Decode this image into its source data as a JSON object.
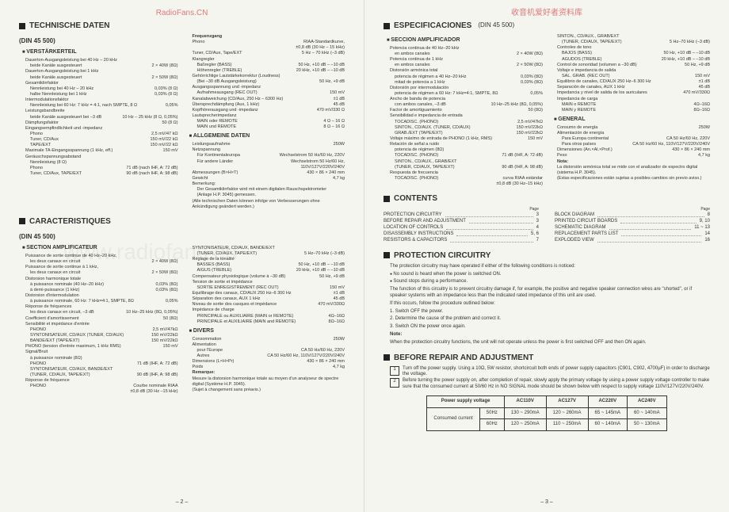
{
  "watermarks": {
    "top_left": "RadioFans.CN",
    "top_right": "收音机爱好者资料库",
    "bg": "www.radiofans.cn"
  },
  "left_page": {
    "page_num": "– 2 –",
    "h1": "TECHNISCHE DATEN",
    "din": "(DIN 45 500)",
    "sub_verst": "VERSTÄRKERTEIL",
    "de": [
      {
        "l": "Dauerton-Ausgangsleistung bei 40 Hz – 20 kHz",
        "v": ""
      },
      {
        "l": "beide Kanäle ausgesteuert",
        "v": "2 × 40W (8Ω)",
        "i": true
      },
      {
        "l": "Dauerton-Ausgangsleistung bei 1 kHz",
        "v": ""
      },
      {
        "l": "beide Kanäle ausgesteuert",
        "v": "2 × 50W (8Ω)",
        "i": true
      },
      {
        "l": "Gesamtklirrfaktor",
        "v": ""
      },
      {
        "l": "Nennleistung bei 40 Hz – 20 kHz",
        "v": "0,03% (8 Ω)",
        "i": true
      },
      {
        "l": "halbe Nennleistung bei 1 kHz",
        "v": "0,03% (8 Ω)",
        "i": true
      },
      {
        "l": "Intermodulationsfaktor",
        "v": ""
      },
      {
        "l": "Nennleistung bei 60 Hz: 7 kHz = 4:1, nach SMPTE, 8 Ω",
        "v": "0,05%",
        "i": true
      },
      {
        "l": "Leistungsbandbreite",
        "v": ""
      },
      {
        "l": "beide Kanäle ausgesteuert bei –3 dB",
        "v": "10 Hz – 25 kHz (8 Ω, 0,05%)",
        "i": true
      },
      {
        "l": "Dämpfungsfaktor",
        "v": "50 (8 Ω)"
      },
      {
        "l": "Eingangsempfindlichkeit und -impedanz",
        "v": ""
      },
      {
        "l": "Phono",
        "v": "2,5 mV/47 kΩ",
        "i": true
      },
      {
        "l": "Tuner, CD/Aux",
        "v": "150 mV/22 kΩ",
        "i": true
      },
      {
        "l": "TAPE/EXT",
        "v": "150 mV/22 kΩ",
        "i": true
      },
      {
        "l": "Maximale TA-Eingangsspannung (1 kHz, eff.)",
        "v": "150 mV"
      },
      {
        "l": "Geräuschspannungsabstand",
        "v": ""
      },
      {
        "l": "Nennleistung (8 Ω)",
        "v": "",
        "i": true
      },
      {
        "l": "Phono",
        "v": "71 dB (nach IHF, A: 72 dB)",
        "i": true
      },
      {
        "l": "Tuner, CD/Aux, TAPE/EXT",
        "v": "90 dB (nach IHF, A: 98 dB)",
        "i": true
      }
    ],
    "de_right_head": "Frequenzgang",
    "de_right": [
      {
        "l": "Phono",
        "v": "RIAA-Standardkurve,"
      },
      {
        "l": "",
        "v": "±0,8 dB (30 Hz – 15 kHz)"
      },
      {
        "l": "Tuner, CD/Aux, Tape/EXT",
        "v": "5 Hz – 70 kHz (–3 dB)"
      },
      {
        "l": "Klangregler",
        "v": ""
      },
      {
        "l": "Baßregler (BASS)",
        "v": "50 Hz, +10 dB – –10 dB",
        "i": true
      },
      {
        "l": "Höhenregler (TREBLE)",
        "v": "20 kHz, +10 dB – –10 dB",
        "i": true
      },
      {
        "l": "Gehörrichtige Lautstärkekorrektur (Loudness)",
        "v": ""
      },
      {
        "l": "(Bei –30 dB Ausgangsleistung)",
        "v": "50 Hz, +9 dB",
        "i": true
      },
      {
        "l": "Ausgangsspannung und -impedanz",
        "v": ""
      },
      {
        "l": "Aufnahmeausgang (REC OUT)",
        "v": "150 mV",
        "i": true
      },
      {
        "l": "Kanalabweichung (CD/Aux, 250 Hz – 6300 Hz)",
        "v": "±1 dB"
      },
      {
        "l": "Übersprechdämpfung (Aux, 1 kHz)",
        "v": "45 dB"
      },
      {
        "l": "Kopfhörerausgang und -impedanz",
        "v": "470 mV/330 Ω"
      },
      {
        "l": "Lautsprecherimpedanz",
        "v": ""
      },
      {
        "l": "MAIN oder REMOTE",
        "v": "4 Ω – 16 Ω",
        "i": true
      },
      {
        "l": "MAIN und REMOTE",
        "v": "8 Ω – 16 Ω",
        "i": true
      }
    ],
    "sub_allg": "ALLGEMEINE DATEN",
    "allg": [
      {
        "l": "Leistungsaufnahme",
        "v": "250W"
      },
      {
        "l": "Netzspannung",
        "v": ""
      },
      {
        "l": "Für Kontinentaleuropa",
        "v": "Wechselstrom 50 Hz/60 Hz, 220V",
        "i": true
      },
      {
        "l": "Für andere Länder",
        "v": "Wechselstrom 50 Hz/60 Hz,",
        "i": true
      },
      {
        "l": "",
        "v": "110V/127V/220V/240V",
        "i": true
      },
      {
        "l": "Abmessungen (B×H×T)",
        "v": "430 × 86 × 240 mm"
      },
      {
        "l": "Gewicht",
        "v": "4,7 kg"
      },
      {
        "l": "Bemerkung:",
        "v": ""
      },
      {
        "l": "Der Gesamtklirrfaktor wird mit einem digitalen Rauschspektrometer (Anlage H.P. 3045) gemessen.",
        "v": "",
        "i": true
      }
    ],
    "de_footer": "(Alle technischen Daten können infolge von Verbesserungen ohne Ankündigung geändert werden.)",
    "h2": "CARACTERISTIQUES",
    "din2": "(DIN 45 500)",
    "sub_ampl": "SECTION AMPLIFICATEUR",
    "fr": [
      {
        "l": "Puissance de sortie continue de 40 Hz–20 kHz,",
        "v": ""
      },
      {
        "l": "les deux canaux en circuit",
        "v": "2 × 40W (8Ω)",
        "i": true
      },
      {
        "l": "Puissance de sortie continue à 1 kHz,",
        "v": ""
      },
      {
        "l": "les deux canaux en circuit",
        "v": "2 × 50W (8Ω)",
        "i": true
      },
      {
        "l": "Distorsion harmonique totale",
        "v": ""
      },
      {
        "l": "à puissance nominale (40 Hz–20 kHz)",
        "v": "0,03% (8Ω)",
        "i": true
      },
      {
        "l": "à demi-puissance (1 kHz)",
        "v": "0,03% (8Ω)",
        "i": true
      },
      {
        "l": "Distorsion d'intermodulation",
        "v": ""
      },
      {
        "l": "à puissance nominale, 60 Hz: 7 kHz=4:1, SMPTE, 8Ω",
        "v": "0,05%",
        "i": true
      },
      {
        "l": "Réponse de fréquences",
        "v": ""
      },
      {
        "l": "les deux canaux en circuit, –3 dB",
        "v": "10 Hz–25 kHz (8Ω, 0,05%)",
        "i": true
      },
      {
        "l": "Coefficient d'amortissement",
        "v": "50 (8Ω)"
      },
      {
        "l": "Sensibilité et impédance d'entrée",
        "v": ""
      },
      {
        "l": "PHONO",
        "v": "2,5 mV/47kΩ",
        "i": true
      },
      {
        "l": "SYNTONISATEUR, CD/AUX (TUNER, CD/AUX)",
        "v": "150 mV/22kΩ",
        "i": true
      },
      {
        "l": "BANDE/EXT (TAPE/EXT)",
        "v": "150 mV/22kΩ",
        "i": true
      },
      {
        "l": "PHONO (tension d'entrée maximum, 1 kHz RMS)",
        "v": "150 mV"
      },
      {
        "l": "Signal/Bruit",
        "v": ""
      },
      {
        "l": "à puissance nominale (8Ω)",
        "v": "",
        "i": true
      },
      {
        "l": "PHONO",
        "v": "71 dB (IHF, A: 72 dB)",
        "i": true
      },
      {
        "l": "SYNTONISATEUR, CD/AUX, BANDE/EXT",
        "v": "",
        "i": true
      },
      {
        "l": "(TUNER, CD/AUX, TAPE/EXT)",
        "v": "90 dB (IHF, A: 98 dB)",
        "i": true
      },
      {
        "l": "Réponse de fréquence",
        "v": ""
      },
      {
        "l": "PHONO",
        "v": "Courbe nominale RIAA",
        "i": true
      },
      {
        "l": "",
        "v": "±0,8 dB (30 Hz –15 kHz)",
        "i": true
      }
    ],
    "fr_right": [
      {
        "l": "SYNTONISATEUR, CD/AUX, BANDE/EXT",
        "v": ""
      },
      {
        "l": "(TUNER, CD/AUX, TAPE/EXT)",
        "v": "5 Hz–70 kHz (–3 dB)",
        "i": true
      },
      {
        "l": "Réglage de la tonalité",
        "v": ""
      },
      {
        "l": "BASSES (BASS)",
        "v": "50 Hz, +10 dB – –10 dB",
        "i": true
      },
      {
        "l": "AIGUS (TREBLE)",
        "v": "20 kHz, +10 dB – –10 dB",
        "i": true
      },
      {
        "l": "Compensateur physiologique (volume à –30 dB)",
        "v": "50 Hz, +9 dB"
      },
      {
        "l": "Tension de sortie et impédance",
        "v": ""
      },
      {
        "l": "SORTIE ENREGISTREMENT (REC OUT)",
        "v": "150 mV",
        "i": true
      },
      {
        "l": "Equilibrage des canaux, CD/AUX 250 Hz–6 300 Hz",
        "v": "±1 dB"
      },
      {
        "l": "Séparation des canaux, AUX 1 kHz",
        "v": "45 dB"
      },
      {
        "l": "Niveau de sortie des casques et impédance",
        "v": "470 mV/330Ω"
      },
      {
        "l": "Impédance de charge",
        "v": ""
      },
      {
        "l": "PRINCIPALE ou AUXILIAIRE (MAIN or REMOTE)",
        "v": "4Ω–16Ω",
        "i": true
      },
      {
        "l": "PRINCIPALE et AUXILIAIRE (MAIN and REMOTE)",
        "v": "8Ω–16Ω",
        "i": true
      }
    ],
    "sub_divers": "DIVERS",
    "divers": [
      {
        "l": "Consommation",
        "v": "250W"
      },
      {
        "l": "Alimentation",
        "v": ""
      },
      {
        "l": "pour l'Europe",
        "v": "CA 50 Hz/60 Hz, 220V",
        "i": true
      },
      {
        "l": "Autres",
        "v": "CA 50 Hz/60 Hz, 110V/127V/220V/240V",
        "i": true
      },
      {
        "l": "Dimensions (L×H×Pr)",
        "v": "430 × 86 × 240 mm"
      },
      {
        "l": "Poids",
        "v": "4,7 kg"
      }
    ],
    "fr_remark_head": "Remarque:",
    "fr_remark": "Mesure la distorsion harmonique totale au moyen d'un analyseur de spectre digital (Système H.P. 3045).",
    "fr_footer": "(Sujet à changement sans préavis.)"
  },
  "right_page": {
    "page_num": "– 3 –",
    "h1": "ESPECIFICACIONES",
    "din_inline": "(DIN 45 500)",
    "sub_ampl": "SECCION AMPLIFICADOR",
    "es": [
      {
        "l": "Potencia continua de 40 Hz–20 kHz",
        "v": ""
      },
      {
        "l": "en ambos canales",
        "v": "2 × 40W (8Ω)",
        "i": true
      },
      {
        "l": "Potencia continua de 1 kHz",
        "v": ""
      },
      {
        "l": "en ambos canales",
        "v": "2 × 50W (8Ω)",
        "i": true
      },
      {
        "l": "Distorsión armónica total",
        "v": ""
      },
      {
        "l": "potencia de régimen a 40 Hz–20 kHz",
        "v": "0,03% (8Ω)",
        "i": true
      },
      {
        "l": "mitad de potencia a 1 kHz",
        "v": "0,03% (8Ω)",
        "i": true
      },
      {
        "l": "Distorsión por intermodulación",
        "v": ""
      },
      {
        "l": "potencia de régimen a 60 Hz: 7 kHz=4:1, SMPTE, 8Ω",
        "v": "0,05%",
        "i": true
      },
      {
        "l": "Ancho de banda de potencia",
        "v": ""
      },
      {
        "l": "con ambos canales, –3 dB",
        "v": "10 Hz–25 kHz (8Ω, 0,05%)",
        "i": true
      },
      {
        "l": "Factor de amortiguamiento",
        "v": "50 (8Ω)"
      },
      {
        "l": "Sensibilidad e impedancia de entrada",
        "v": ""
      },
      {
        "l": "TOCADISC. (PHONO)",
        "v": "2,5 mV/47kΩ",
        "i": true
      },
      {
        "l": "SINTON., CD/AUX. (TUNER, CD/AUX)",
        "v": "150 mV/22kΩ",
        "i": true
      },
      {
        "l": "GRAB./EXT (TAPE/EXT)",
        "v": "150 mV/22kΩ",
        "i": true
      },
      {
        "l": "Voltaje máximo de entrada de PHONO (1 kHz, RMS)",
        "v": "150 mV"
      },
      {
        "l": "Relación de señal a ruido",
        "v": ""
      },
      {
        "l": "potencia de régimen (8Ω)",
        "v": "",
        "i": true
      },
      {
        "l": "TOCADISC. (PHONO)",
        "v": "71 dB (IHF, A: 72 dB)",
        "i": true
      },
      {
        "l": "SINTON., CD/AUX., GRAB/EXT",
        "v": "",
        "i": true
      },
      {
        "l": "(TUNER, CD/AUX, TAPE/EXT)",
        "v": "90 dB (IHF, A: 98 dB)",
        "i": true
      },
      {
        "l": "Respuesta de frecuencia",
        "v": ""
      },
      {
        "l": "TOCADISC. (PHONO)",
        "v": "curva RIAA estándar",
        "i": true
      },
      {
        "l": "",
        "v": "±0,8 dB (30 Hz–15 kHz)",
        "i": true
      }
    ],
    "es_right": [
      {
        "l": "SINTON., CD/AUX., GRAB/EXT",
        "v": ""
      },
      {
        "l": "(TUNER, CD/AUX, TAPE/EXT)",
        "v": "5 Hz–70 kHz (–3 dB)",
        "i": true
      },
      {
        "l": "Controles de tono",
        "v": ""
      },
      {
        "l": "BAJOS (BASS)",
        "v": "50 Hz, +10 dB – –10 dB",
        "i": true
      },
      {
        "l": "AGUDOS (TREBLE)",
        "v": "20 kHz, +10 dB – –10 dB",
        "i": true
      },
      {
        "l": "Control de sonoridad (volumen a –30 dB)",
        "v": "50 Hz, +9 dB"
      },
      {
        "l": "Voltaje e impedancia de salida",
        "v": ""
      },
      {
        "l": "SAL. GRAB. (REC OUT)",
        "v": "150 mV",
        "i": true
      },
      {
        "l": "Equilibrio de canales, CD/AUX 250 Hz–6 300 Hz",
        "v": "±1 dB"
      },
      {
        "l": "Separación de canales, AUX 1 kHz",
        "v": "45 dB"
      },
      {
        "l": "Impedancia y nivel de salida de los auriculares",
        "v": "470 mV/330Ω"
      },
      {
        "l": "Impedancia de carga",
        "v": ""
      },
      {
        "l": "MAIN o REMOTE",
        "v": "4Ω–16Ω",
        "i": true
      },
      {
        "l": "MAIN y REMOTE",
        "v": "8Ω–16Ω",
        "i": true
      }
    ],
    "sub_general": "GENERAL",
    "general": [
      {
        "l": "Consumo de energía",
        "v": "250W"
      },
      {
        "l": "Alimentación de energía",
        "v": ""
      },
      {
        "l": "Para Europa continental",
        "v": "CA 50 Hz/60 Hz, 220V",
        "i": true
      },
      {
        "l": "Para otros países",
        "v": "CA 50 Hz/60 Hz, 110V/127V/220V/240V",
        "i": true
      },
      {
        "l": "Dimensiones (An.×Al.×Prof.)",
        "v": "430 × 86 × 240 mm"
      },
      {
        "l": "Peso",
        "v": "4,7 kg"
      }
    ],
    "es_note_head": "Nota:",
    "es_note": "La distorsión armónica total se mide con el analizador de espectro digital (sistema H.P. 3045).",
    "es_footer": "(Estas especificaciones están sujetas a posibles cambios sin previo aviso.)",
    "h2": "CONTENTS",
    "contents_left": [
      {
        "t": "PROTECTION CIRCUITRY",
        "p": "3"
      },
      {
        "t": "BEFORE REPAIR AND ADJUSTMENT",
        "p": "3"
      },
      {
        "t": "LOCATION OF CONTROLS",
        "p": "4"
      },
      {
        "t": "DISASSEMBLY INSTRUCTIONS",
        "p": "5, 6"
      },
      {
        "t": "RESISTORS & CAPACITORS",
        "p": "7"
      }
    ],
    "contents_right": [
      {
        "t": "BLOCK DIAGRAM",
        "p": "8"
      },
      {
        "t": "PRINTED CIRCUIT BOARDS",
        "p": "9, 10"
      },
      {
        "t": "SCHEMATIC DIAGRAM",
        "p": "11 ~ 13"
      },
      {
        "t": "REPLACEMENT PARTS LIST",
        "p": "14"
      },
      {
        "t": "EXPLODED VIEW",
        "p": "16"
      }
    ],
    "contents_page_label": "Page",
    "h3": "PROTECTION CIRCUITRY",
    "prot_intro": "The protection circuitry may have operated if either of the following conditions is noticed:",
    "prot_b1": "No sound is heard when the power is switched ON.",
    "prot_b2": "Sound stops during a performance.",
    "prot_p1": "The function of this circuitry is to prevent circuitry damage if, for example, the positive and negative speaker connection wires are \"shorted\", or if speaker systems with an impedance less than the indicated rated impedance of this unit are used.",
    "prot_p2": "If this occurs, follow the procedure outlined below:",
    "prot_s1": "1. Switch OFF the power.",
    "prot_s2": "2. Determine the cause of the problem and correct it.",
    "prot_s3": "3. Switch ON the power once again.",
    "prot_note_head": "Note:",
    "prot_note": "When the protection circuitry functions, the unit will not operate unless the power is first switched OFF and then ON again.",
    "h4": "BEFORE REPAIR AND ADJUSTMENT",
    "bra1": "Turn off the power supply. Using a 10Ω, 5W resistor, shortcircuit both ends of power supply capacitors (C901, C902, 4700µF) in order to discharge the voltage.",
    "bra2": "Before turning the power supply on, after completion of repair, slowly apply the primary voltage by using a power supply voltage controller to make sure that the consumed current at 50/60 Hz in NO SIGNAL mode should be shown below with respect to supply voltage 110V/127V/220V/240V.",
    "table": {
      "head": [
        "Power supply voltage",
        "AC110V",
        "AC127V",
        "AC220V",
        "AC240V"
      ],
      "row1": [
        "Consumed current",
        "50Hz",
        "130 ~ 290mA",
        "120 ~ 260mA",
        "65 ~ 145mA",
        "60 ~ 140mA"
      ],
      "row2": [
        "",
        "60Hz",
        "120 ~ 250mA",
        "110 ~ 250mA",
        "60 ~ 140mA",
        "50 ~ 130mA"
      ]
    }
  }
}
